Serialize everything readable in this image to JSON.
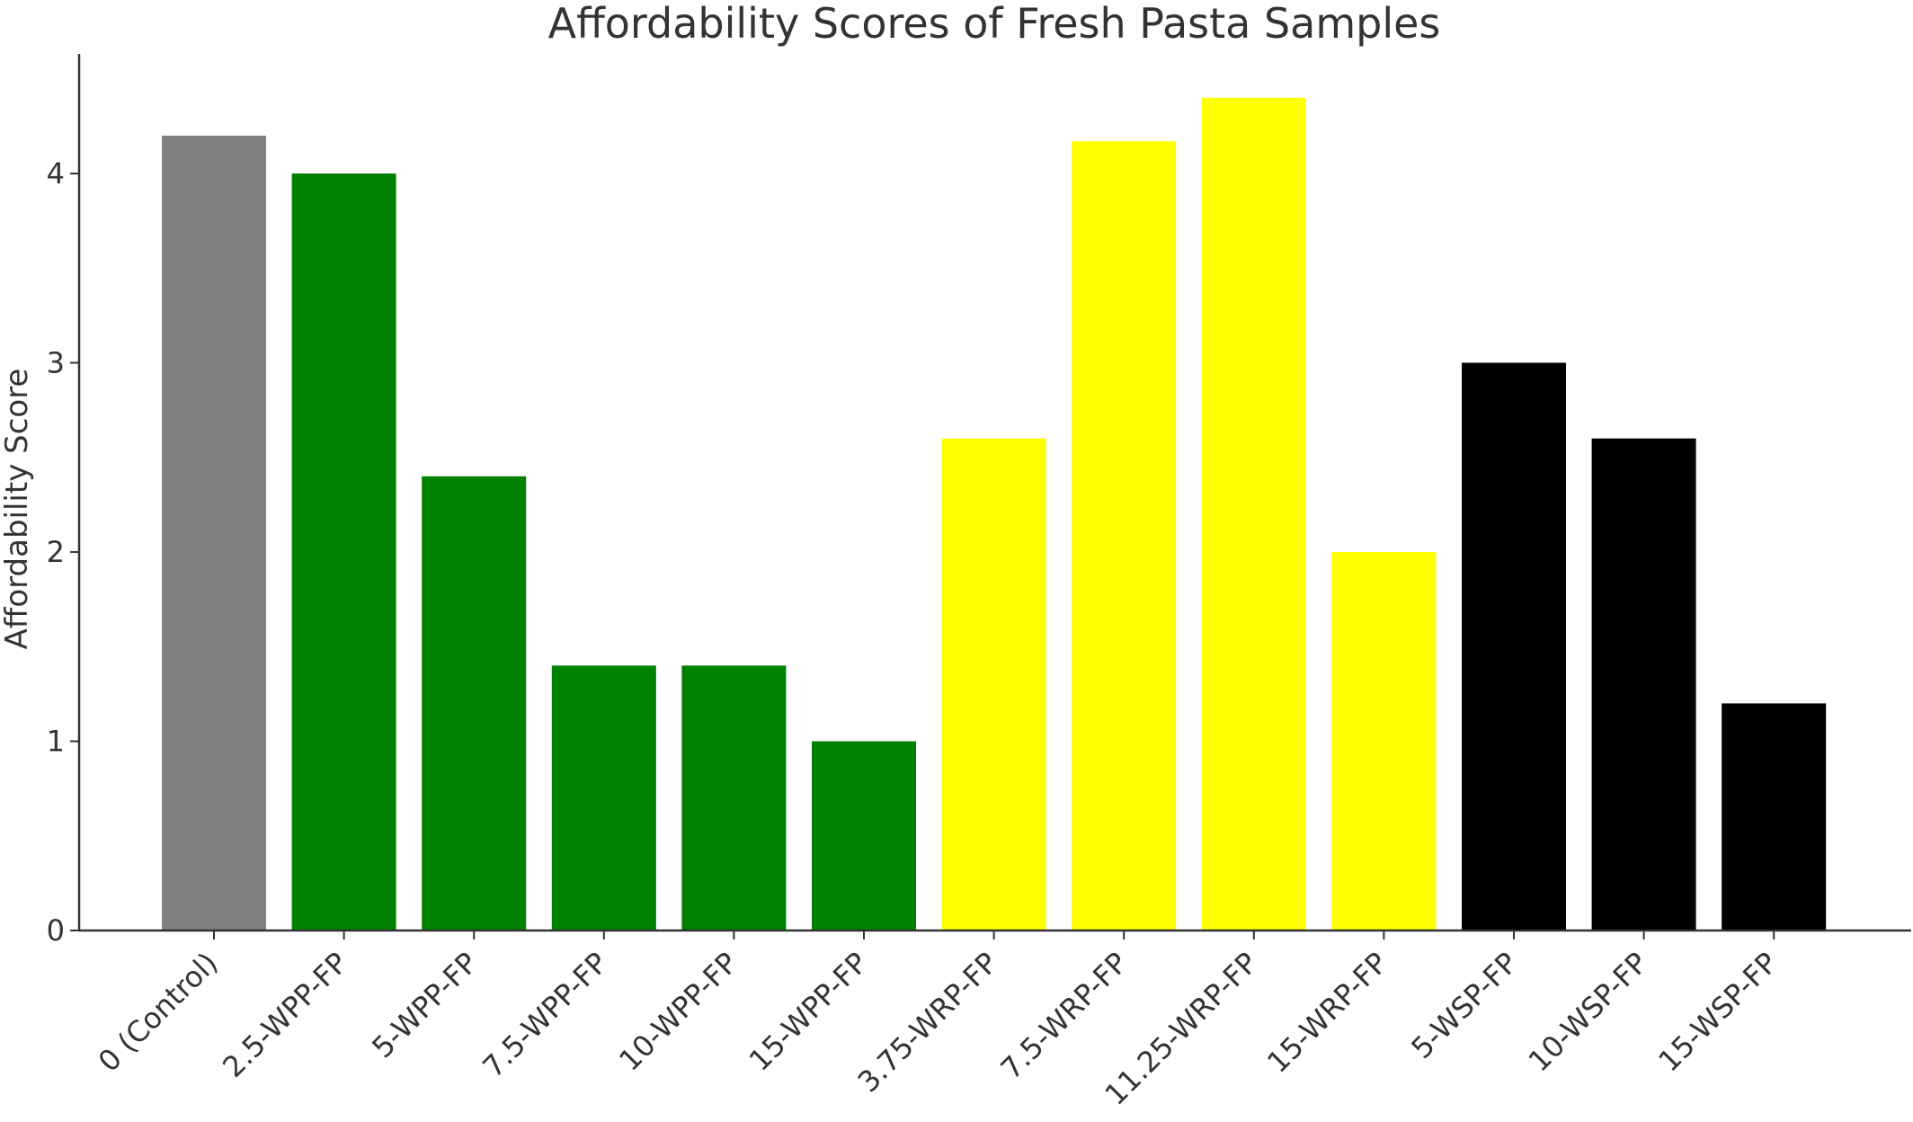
{
  "chart_data": {
    "type": "bar",
    "title": "Affordability Scores of Fresh Pasta Samples",
    "xlabel": "",
    "ylabel": "Affordability Score",
    "ylim": [
      0,
      4.62
    ],
    "yticks": [
      0,
      1,
      2,
      3,
      4
    ],
    "grid": false,
    "categories": [
      "0 (Control)",
      "2.5-WPP-FP",
      "5-WPP-FP",
      "7.5-WPP-FP",
      "10-WPP-FP",
      "15-WPP-FP",
      "3.75-WRP-FP",
      "7.5-WRP-FP",
      "11.25-WRP-FP",
      "15-WRP-FP",
      "5-WSP-FP",
      "10-WSP-FP",
      "15-WSP-FP"
    ],
    "values": [
      4.2,
      4.0,
      2.4,
      1.4,
      1.4,
      1.0,
      2.6,
      4.17,
      4.4,
      2.0,
      3.0,
      2.6,
      1.2
    ],
    "colors": [
      "#808080",
      "#008000",
      "#008000",
      "#008000",
      "#008000",
      "#008000",
      "#ffff00",
      "#ffff00",
      "#ffff00",
      "#ffff00",
      "#000000",
      "#000000",
      "#000000"
    ],
    "axis_color": "#333333"
  }
}
